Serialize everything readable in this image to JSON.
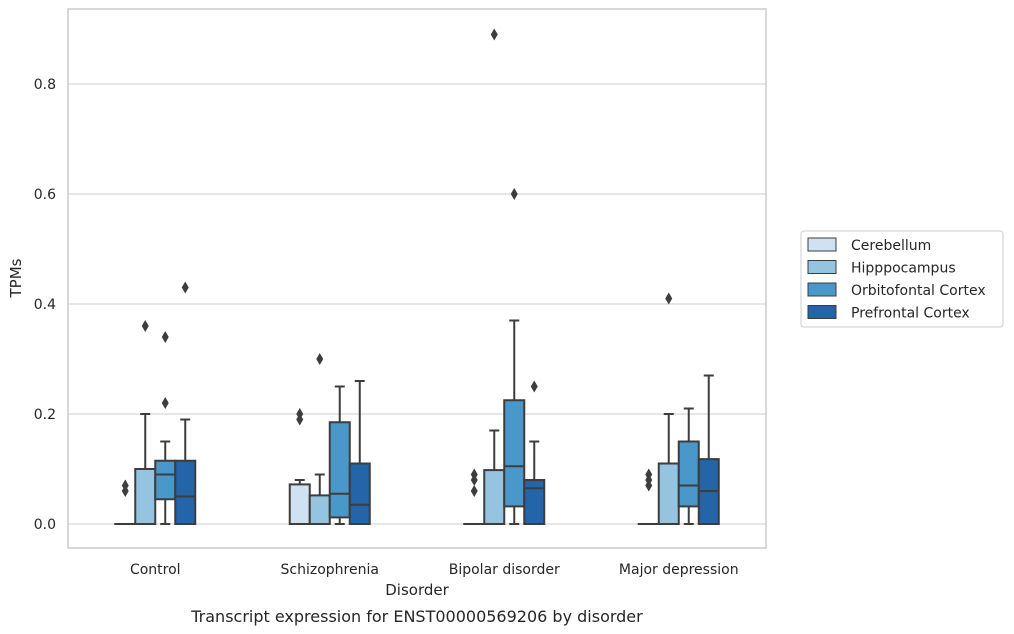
{
  "chart_data": {
    "type": "boxplot",
    "title": "",
    "caption": "Transcript expression for ENST00000569206 by disorder",
    "xlabel": "Disorder",
    "ylabel": "TPMs",
    "ylim": [
      -0.04,
      0.94
    ],
    "yticks": [
      0.0,
      0.2,
      0.4,
      0.6,
      0.8
    ],
    "ytick_labels": [
      "0.0",
      "0.2",
      "0.4",
      "0.6",
      "0.8"
    ],
    "grid": "horizontal",
    "legend_position": "right",
    "categories": [
      "Control",
      "Schizophrenia",
      "Bipolar disorder",
      "Major depression"
    ],
    "series": [
      {
        "name": "Cerebellum",
        "color": "#d0e1f2",
        "boxes": [
          {
            "whislo": 0,
            "q1": 0,
            "med": 0,
            "q3": 0,
            "whishi": 0,
            "fliers": [
              0.06,
              0.07
            ]
          },
          {
            "whislo": 0,
            "q1": 0,
            "med": 0,
            "q3": 0.072,
            "whishi": 0.08,
            "fliers": [
              0.19,
              0.2
            ]
          },
          {
            "whislo": 0,
            "q1": 0,
            "med": 0,
            "q3": 0,
            "whishi": 0,
            "fliers": [
              0.06,
              0.08,
              0.09
            ]
          },
          {
            "whislo": 0,
            "q1": 0,
            "med": 0,
            "q3": 0,
            "whishi": 0,
            "fliers": [
              0.07,
              0.08,
              0.09
            ]
          }
        ]
      },
      {
        "name": "Hipppocampus",
        "color": "#94c4df",
        "boxes": [
          {
            "whislo": 0,
            "q1": 0,
            "med": 0,
            "q3": 0.1,
            "whishi": 0.2,
            "fliers": [
              0.36
            ]
          },
          {
            "whislo": 0,
            "q1": 0,
            "med": 0,
            "q3": 0.052,
            "whishi": 0.09,
            "fliers": [
              0.3
            ]
          },
          {
            "whislo": 0,
            "q1": 0,
            "med": 0,
            "q3": 0.098,
            "whishi": 0.17,
            "fliers": [
              0.89
            ]
          },
          {
            "whislo": 0,
            "q1": 0,
            "med": 0,
            "q3": 0.11,
            "whishi": 0.2,
            "fliers": [
              0.41
            ]
          }
        ]
      },
      {
        "name": "Orbitofontal Cortex",
        "color": "#4a98c9",
        "boxes": [
          {
            "whislo": 0,
            "q1": 0.045,
            "med": 0.09,
            "q3": 0.115,
            "whishi": 0.15,
            "fliers": [
              0.22,
              0.34
            ]
          },
          {
            "whislo": 0,
            "q1": 0.012,
            "med": 0.055,
            "q3": 0.185,
            "whishi": 0.25,
            "fliers": []
          },
          {
            "whislo": 0,
            "q1": 0.032,
            "med": 0.105,
            "q3": 0.225,
            "whishi": 0.37,
            "fliers": [
              0.6
            ]
          },
          {
            "whislo": 0,
            "q1": 0.032,
            "med": 0.07,
            "q3": 0.15,
            "whishi": 0.21,
            "fliers": []
          }
        ]
      },
      {
        "name": "Prefrontal Cortex",
        "color": "#2464a8",
        "boxes": [
          {
            "whislo": 0,
            "q1": 0,
            "med": 0.05,
            "q3": 0.115,
            "whishi": 0.19,
            "fliers": [
              0.43
            ]
          },
          {
            "whislo": 0,
            "q1": 0,
            "med": 0.035,
            "q3": 0.11,
            "whishi": 0.26,
            "fliers": []
          },
          {
            "whislo": 0,
            "q1": 0,
            "med": 0.065,
            "q3": 0.08,
            "whishi": 0.15,
            "fliers": [
              0.25
            ]
          },
          {
            "whislo": 0,
            "q1": 0,
            "med": 0.06,
            "q3": 0.118,
            "whishi": 0.27,
            "fliers": []
          }
        ]
      }
    ],
    "colors": {
      "axis": "#cccccc",
      "grid": "#cccccc",
      "edge": "#3d3d3d",
      "text": "#262626"
    }
  }
}
